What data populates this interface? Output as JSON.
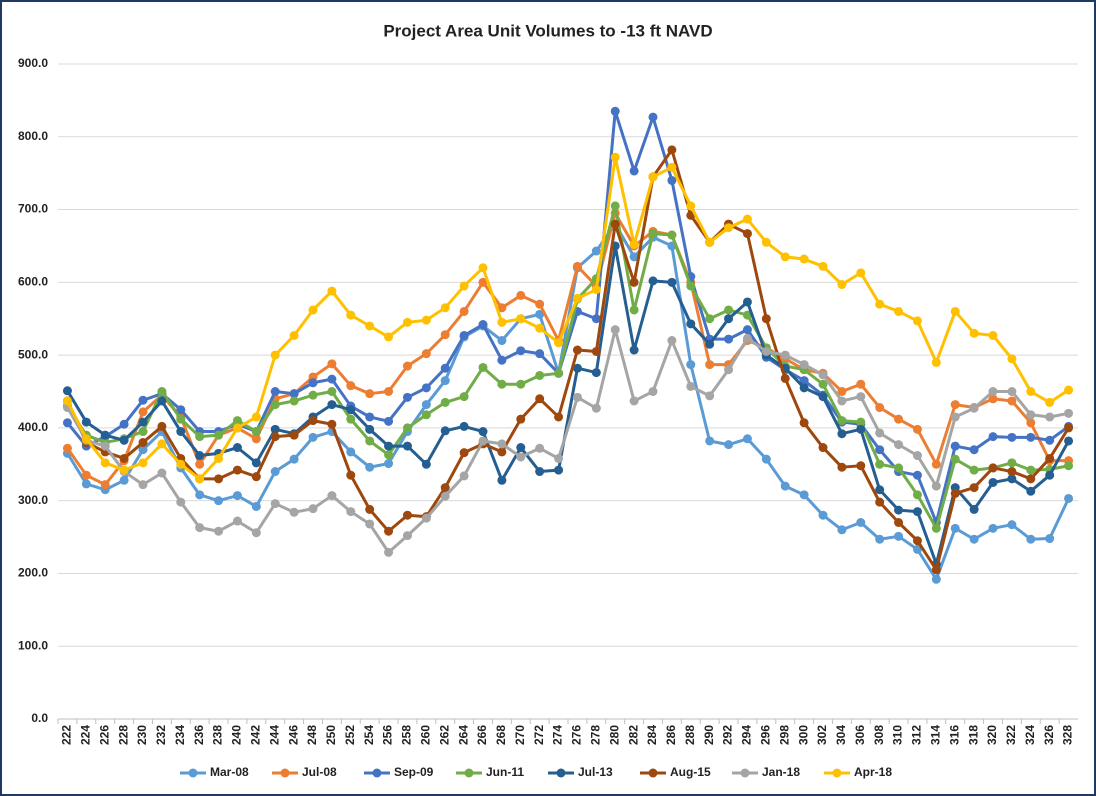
{
  "chart_data": {
    "type": "line",
    "title": "Project Area Unit Volumes to -13 ft NAVD",
    "categories": [
      "222",
      "224",
      "226",
      "228",
      "230",
      "232",
      "234",
      "236",
      "238",
      "240",
      "242",
      "244",
      "246",
      "248",
      "250",
      "252",
      "254",
      "256",
      "258",
      "260",
      "262",
      "264",
      "266",
      "268",
      "270",
      "272",
      "274",
      "276",
      "278",
      "280",
      "282",
      "284",
      "286",
      "288",
      "290",
      "292",
      "294",
      "296",
      "298",
      "300",
      "302",
      "304",
      "306",
      "308",
      "310",
      "312",
      "314",
      "316",
      "318",
      "320",
      "322",
      "324",
      "326",
      "328"
    ],
    "series": [
      {
        "name": "Mar-08",
        "color": "#5b9bd5",
        "values": [
          365,
          323,
          315,
          328,
          370,
          395,
          345,
          308,
          300,
          307,
          292,
          340,
          357,
          387,
          395,
          367,
          346,
          351,
          395,
          432,
          465,
          525,
          540,
          520,
          550,
          556,
          475,
          620,
          643,
          680,
          635,
          662,
          650,
          487,
          382,
          377,
          385,
          357,
          320,
          308,
          280,
          260,
          270,
          247,
          251,
          233,
          192,
          262,
          247,
          262,
          267,
          247,
          248,
          303
        ]
      },
      {
        "name": "Jul-08",
        "color": "#ed7d31",
        "values": [
          372,
          335,
          322,
          355,
          422,
          445,
          415,
          350,
          390,
          400,
          385,
          440,
          447,
          470,
          488,
          458,
          447,
          450,
          485,
          502,
          528,
          560,
          600,
          565,
          582,
          570,
          520,
          622,
          595,
          695,
          650,
          670,
          665,
          600,
          487,
          487,
          520,
          510,
          495,
          480,
          475,
          450,
          460,
          428,
          412,
          398,
          350,
          432,
          428,
          440,
          437,
          407,
          355,
          355
        ]
      },
      {
        "name": "Sep-09",
        "color": "#4472c4",
        "values": [
          407,
          375,
          388,
          405,
          438,
          447,
          425,
          395,
          395,
          405,
          395,
          450,
          447,
          462,
          467,
          430,
          415,
          409,
          442,
          455,
          482,
          527,
          542,
          493,
          506,
          502,
          475,
          560,
          550,
          835,
          753,
          827,
          740,
          608,
          522,
          522,
          535,
          497,
          480,
          465,
          445,
          408,
          405,
          370,
          340,
          335,
          270,
          375,
          370,
          388,
          387,
          387,
          383,
          402
        ]
      },
      {
        "name": "Jun-11",
        "color": "#70ad47",
        "values": [
          430,
          390,
          380,
          385,
          395,
          450,
          412,
          388,
          390,
          410,
          395,
          432,
          437,
          445,
          450,
          412,
          382,
          363,
          400,
          418,
          435,
          443,
          483,
          460,
          460,
          472,
          475,
          577,
          605,
          705,
          562,
          667,
          665,
          595,
          550,
          562,
          555,
          510,
          485,
          480,
          460,
          410,
          408,
          350,
          345,
          308,
          262,
          357,
          342,
          345,
          352,
          342,
          343,
          348
        ]
      },
      {
        "name": "Jul-13",
        "color": "#255e91",
        "values": [
          451,
          408,
          390,
          383,
          408,
          437,
          395,
          362,
          365,
          373,
          352,
          398,
          392,
          415,
          432,
          425,
          398,
          375,
          375,
          350,
          396,
          402,
          395,
          328,
          373,
          340,
          342,
          482,
          476,
          650,
          507,
          602,
          600,
          543,
          515,
          550,
          573,
          500,
          482,
          455,
          443,
          392,
          398,
          315,
          287,
          285,
          213,
          318,
          288,
          325,
          330,
          313,
          335,
          382
        ]
      },
      {
        "name": "Aug-15",
        "color": "#9e480e",
        "values": [
          437,
          380,
          367,
          358,
          380,
          402,
          358,
          330,
          330,
          342,
          333,
          388,
          390,
          410,
          405,
          335,
          288,
          258,
          280,
          278,
          318,
          366,
          378,
          367,
          412,
          440,
          415,
          507,
          505,
          680,
          600,
          745,
          782,
          692,
          655,
          680,
          667,
          550,
          468,
          407,
          373,
          346,
          348,
          298,
          270,
          245,
          205,
          310,
          318,
          345,
          340,
          330,
          358,
          400
        ]
      },
      {
        "name": "Jan-18",
        "color": "#a5a5a5",
        "values": [
          428,
          383,
          375,
          340,
          322,
          338,
          298,
          263,
          258,
          272,
          256,
          296,
          284,
          289,
          307,
          285,
          268,
          229,
          252,
          276,
          306,
          334,
          382,
          378,
          360,
          372,
          358,
          442,
          427,
          535,
          437,
          450,
          520,
          457,
          444,
          480,
          523,
          505,
          500,
          487,
          473,
          437,
          443,
          393,
          377,
          362,
          320,
          415,
          427,
          450,
          450,
          418,
          415,
          420
        ]
      },
      {
        "name": "Apr-18",
        "color": "#ffc000",
        "values": [
          437,
          385,
          352,
          342,
          352,
          378,
          350,
          330,
          358,
          400,
          415,
          500,
          527,
          562,
          588,
          555,
          540,
          525,
          545,
          548,
          565,
          595,
          620,
          545,
          550,
          537,
          517,
          578,
          590,
          772,
          652,
          745,
          758,
          705,
          655,
          675,
          687,
          655,
          635,
          632,
          622,
          597,
          613,
          570,
          560,
          547,
          490,
          560,
          530,
          527,
          495,
          450,
          435,
          452
        ]
      }
    ],
    "ylim": [
      0,
      900
    ],
    "yticks": [
      {
        "value": 0,
        "label": "0.0"
      },
      {
        "value": 100,
        "label": "100.0"
      },
      {
        "value": 200,
        "label": "200.0"
      },
      {
        "value": 300,
        "label": "300.0"
      },
      {
        "value": 400,
        "label": "400.0"
      },
      {
        "value": 500,
        "label": "500.0"
      },
      {
        "value": 600,
        "label": "600.0"
      },
      {
        "value": 700,
        "label": "700.0"
      },
      {
        "value": 800,
        "label": "800.0"
      },
      {
        "value": 900,
        "label": "900.0"
      }
    ],
    "grid": true,
    "legend": "bottom"
  }
}
